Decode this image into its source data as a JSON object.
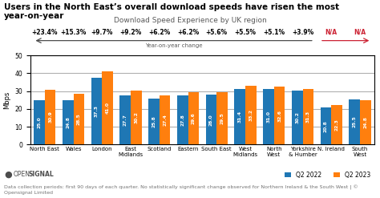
{
  "chart_data": {
    "type": "bar",
    "title": "Users in the North East’s overall download speeds have risen the most year-on-year",
    "subtitle": "Download Speed Experience by UK region",
    "ylabel": "Mbps",
    "categories": [
      "North East",
      "Wales",
      "London",
      "East\nMidlands",
      "Scotland",
      "Eastern",
      "South East",
      "West\nMidlands",
      "North\nWest",
      "Yorkshire\n& Humber",
      "N. Ireland",
      "South\nWest"
    ],
    "series": [
      {
        "name": "Q2 2022",
        "values": [
          25.0,
          24.8,
          37.3,
          27.7,
          25.8,
          27.8,
          28.0,
          31.4,
          31.0,
          30.2,
          20.8,
          25.5
        ]
      },
      {
        "name": "Q2 2023",
        "values": [
          30.9,
          28.5,
          41.0,
          30.2,
          27.4,
          29.6,
          29.5,
          33.2,
          32.6,
          31.3,
          22.3,
          24.8
        ]
      }
    ],
    "ylim": [
      0,
      50
    ],
    "yticks": [
      0,
      10,
      20,
      30,
      40,
      50
    ],
    "grid": true,
    "legend": "lower right",
    "data_labels": true,
    "annotations": [
      {
        "category": "North East",
        "text": "+23.4%"
      },
      {
        "category": "Wales",
        "text": "+15.3%"
      },
      {
        "category": "London",
        "text": "+9.7%"
      },
      {
        "category": "East\nMidlands",
        "text": "+9.2%"
      },
      {
        "category": "Scotland",
        "text": "+6.2%"
      },
      {
        "category": "Eastern",
        "text": "+6.2%"
      },
      {
        "category": "South East",
        "text": "+5.6%"
      },
      {
        "category": "West\nMidlands",
        "text": "+5.5%"
      },
      {
        "category": "North\nWest",
        "text": "+5.1%"
      },
      {
        "category": "Yorkshire\n& Humber",
        "text": "+3.9%"
      },
      {
        "category": "N. Ireland",
        "text": "N/A",
        "color": "#CC2233"
      },
      {
        "category": "South\nWest",
        "text": "N/A",
        "color": "#CC2233"
      }
    ],
    "annotations_title": "Year-on-year change",
    "source": [
      "●",
      "OPEN",
      "SIGNAL"
    ],
    "footnote": "Data collection periods: first 90 days of each quarter. No statistically significant change observed for Northern Ireland & the South West | © Opensignal Limited"
  }
}
